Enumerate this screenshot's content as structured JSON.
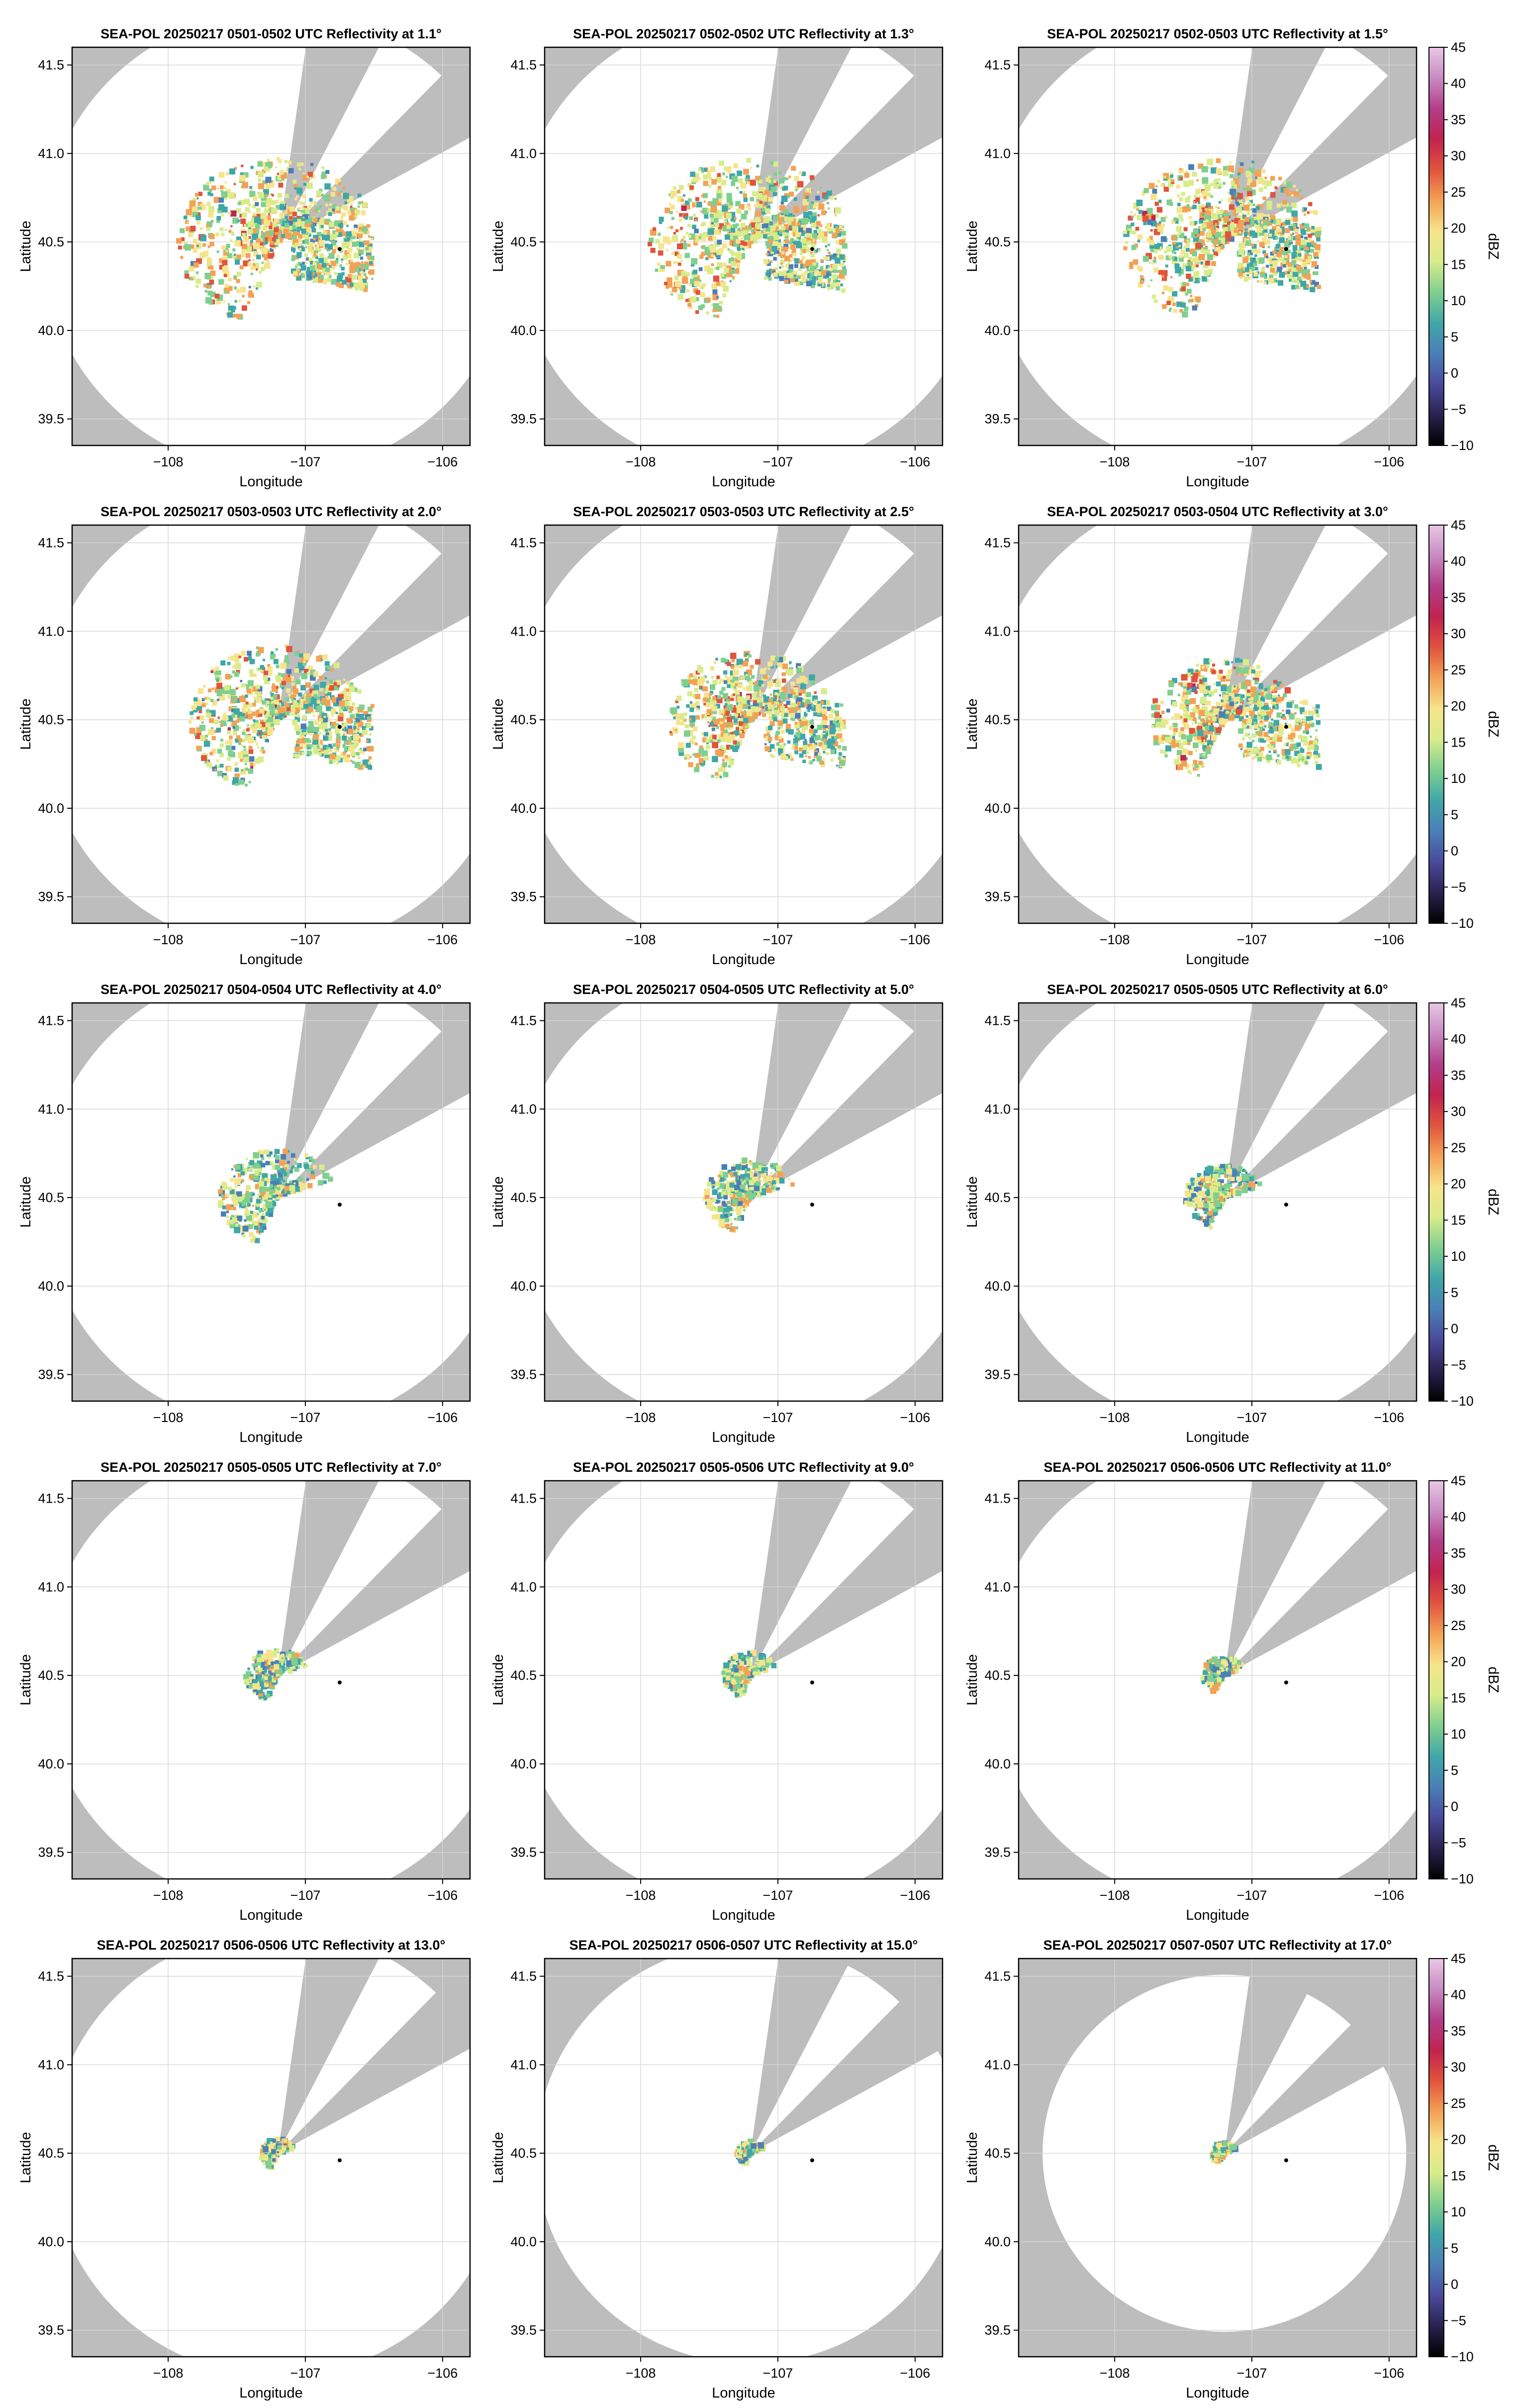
{
  "figure": {
    "background": "#ffffff",
    "sector_fill": "#bdbdbd",
    "colorbar_label": "dBZ",
    "colorbar_range": [
      -10,
      45
    ],
    "colorbar_ticks": [
      "−10",
      "−5",
      "0",
      "5",
      "10",
      "15",
      "20",
      "25",
      "30",
      "35",
      "40",
      "45"
    ],
    "colormap_stops": [
      "#000000",
      "#2a2250",
      "#4a4a9c",
      "#4a7fb8",
      "#3fa7a8",
      "#7fcf8f",
      "#d8ec8a",
      "#f6e48a",
      "#f4a155",
      "#e0543d",
      "#c1234f",
      "#b33d8a",
      "#c98ac3",
      "#e8c8e4"
    ]
  },
  "chart_data": [
    {
      "type": "heatmap",
      "title": "SEA-POL 20250217 0501-0502 UTC Reflectivity at 1.1°",
      "xlabel": "Longitude",
      "ylabel": "Latitude",
      "xlim": [
        -108.7,
        -105.8
      ],
      "ylim": [
        39.35,
        41.6
      ],
      "xticks": [
        "−108",
        "−107",
        "−106"
      ],
      "yticks": [
        "39.5",
        "40.0",
        "40.5",
        "41.0",
        "41.5"
      ],
      "radar_location": [
        -107.2,
        40.5
      ],
      "marker": [
        -106.75,
        40.46
      ],
      "max_range_km": 145,
      "echo_extent_km": 62
    },
    {
      "type": "heatmap",
      "title": "SEA-POL 20250217 0502-0502 UTC Reflectivity at 1.3°",
      "xlabel": "Longitude",
      "ylabel": "Latitude",
      "xlim": [
        -108.7,
        -105.8
      ],
      "ylim": [
        39.35,
        41.6
      ],
      "xticks": [
        "−108",
        "−107",
        "−106"
      ],
      "yticks": [
        "39.5",
        "40.0",
        "40.5",
        "41.0",
        "41.5"
      ],
      "radar_location": [
        -107.2,
        40.5
      ],
      "marker": [
        -106.75,
        40.46
      ],
      "max_range_km": 145,
      "echo_extent_km": 62
    },
    {
      "type": "heatmap",
      "title": "SEA-POL 20250217 0502-0503 UTC Reflectivity at 1.5°",
      "xlabel": "Longitude",
      "ylabel": "Latitude",
      "xlim": [
        -108.7,
        -105.8
      ],
      "ylim": [
        39.35,
        41.6
      ],
      "xticks": [
        "−108",
        "−107",
        "−106"
      ],
      "yticks": [
        "39.5",
        "40.0",
        "40.5",
        "41.0",
        "41.5"
      ],
      "radar_location": [
        -107.2,
        40.5
      ],
      "marker": [
        -106.75,
        40.46
      ],
      "max_range_km": 145,
      "echo_extent_km": 62
    },
    {
      "type": "heatmap",
      "title": "SEA-POL 20250217 0503-0503 UTC Reflectivity at 2.0°",
      "xlabel": "Longitude",
      "ylabel": "Latitude",
      "xlim": [
        -108.7,
        -105.8
      ],
      "ylim": [
        39.35,
        41.6
      ],
      "xticks": [
        "−108",
        "−107",
        "−106"
      ],
      "yticks": [
        "39.5",
        "40.0",
        "40.5",
        "41.0",
        "41.5"
      ],
      "radar_location": [
        -107.2,
        40.5
      ],
      "marker": [
        -106.75,
        40.46
      ],
      "max_range_km": 145,
      "echo_extent_km": 55
    },
    {
      "type": "heatmap",
      "title": "SEA-POL 20250217 0503-0503 UTC Reflectivity at 2.5°",
      "xlabel": "Longitude",
      "ylabel": "Latitude",
      "xlim": [
        -108.7,
        -105.8
      ],
      "ylim": [
        39.35,
        41.6
      ],
      "xticks": [
        "−108",
        "−107",
        "−106"
      ],
      "yticks": [
        "39.5",
        "40.0",
        "40.5",
        "41.0",
        "41.5"
      ],
      "radar_location": [
        -107.2,
        40.5
      ],
      "marker": [
        -106.75,
        40.46
      ],
      "max_range_km": 145,
      "echo_extent_km": 50
    },
    {
      "type": "heatmap",
      "title": "SEA-POL 20250217 0503-0504 UTC Reflectivity at 3.0°",
      "xlabel": "Longitude",
      "ylabel": "Latitude",
      "xlim": [
        -108.7,
        -105.8
      ],
      "ylim": [
        39.35,
        41.6
      ],
      "xticks": [
        "−108",
        "−107",
        "−106"
      ],
      "yticks": [
        "39.5",
        "40.0",
        "40.5",
        "41.0",
        "41.5"
      ],
      "radar_location": [
        -107.2,
        40.5
      ],
      "marker": [
        -106.75,
        40.46
      ],
      "max_range_km": 145,
      "echo_extent_km": 45
    },
    {
      "type": "heatmap",
      "title": "SEA-POL 20250217 0504-0504 UTC Reflectivity at 4.0°",
      "xlabel": "Longitude",
      "ylabel": "Latitude",
      "xlim": [
        -108.7,
        -105.8
      ],
      "ylim": [
        39.35,
        41.6
      ],
      "xticks": [
        "−108",
        "−107",
        "−106"
      ],
      "yticks": [
        "39.5",
        "40.0",
        "40.5",
        "41.0",
        "41.5"
      ],
      "radar_location": [
        -107.2,
        40.5
      ],
      "marker": [
        -106.75,
        40.46
      ],
      "max_range_km": 145,
      "echo_extent_km": 36
    },
    {
      "type": "heatmap",
      "title": "SEA-POL 20250217 0504-0505 UTC Reflectivity at 5.0°",
      "xlabel": "Longitude",
      "ylabel": "Latitude",
      "xlim": [
        -108.7,
        -105.8
      ],
      "ylim": [
        39.35,
        41.6
      ],
      "xticks": [
        "−108",
        "−107",
        "−106"
      ],
      "yticks": [
        "39.5",
        "40.0",
        "40.5",
        "41.0",
        "41.5"
      ],
      "radar_location": [
        -107.2,
        40.5
      ],
      "marker": [
        -106.75,
        40.46
      ],
      "max_range_km": 145,
      "echo_extent_km": 28
    },
    {
      "type": "heatmap",
      "title": "SEA-POL 20250217 0505-0505 UTC Reflectivity at 6.0°",
      "xlabel": "Longitude",
      "ylabel": "Latitude",
      "xlim": [
        -108.7,
        -105.8
      ],
      "ylim": [
        39.35,
        41.6
      ],
      "xticks": [
        "−108",
        "−107",
        "−106"
      ],
      "yticks": [
        "39.5",
        "40.0",
        "40.5",
        "41.0",
        "41.5"
      ],
      "radar_location": [
        -107.2,
        40.5
      ],
      "marker": [
        -106.75,
        40.46
      ],
      "max_range_km": 145,
      "echo_extent_km": 24
    },
    {
      "type": "heatmap",
      "title": "SEA-POL 20250217 0505-0505 UTC Reflectivity at 7.0°",
      "xlabel": "Longitude",
      "ylabel": "Latitude",
      "xlim": [
        -108.7,
        -105.8
      ],
      "ylim": [
        39.35,
        41.6
      ],
      "xticks": [
        "−108",
        "−107",
        "−106"
      ],
      "yticks": [
        "39.5",
        "40.0",
        "40.5",
        "41.0",
        "41.5"
      ],
      "radar_location": [
        -107.2,
        40.5
      ],
      "marker": [
        -106.75,
        40.46
      ],
      "max_range_km": 145,
      "echo_extent_km": 20
    },
    {
      "type": "heatmap",
      "title": "SEA-POL 20250217 0505-0506 UTC Reflectivity at 9.0°",
      "xlabel": "Longitude",
      "ylabel": "Latitude",
      "xlim": [
        -108.7,
        -105.8
      ],
      "ylim": [
        39.35,
        41.6
      ],
      "xticks": [
        "−108",
        "−107",
        "−106"
      ],
      "yticks": [
        "39.5",
        "40.0",
        "40.5",
        "41.0",
        "41.5"
      ],
      "radar_location": [
        -107.2,
        40.5
      ],
      "marker": [
        -106.75,
        40.46
      ],
      "max_range_km": 145,
      "echo_extent_km": 17
    },
    {
      "type": "heatmap",
      "title": "SEA-POL 20250217 0506-0506 UTC Reflectivity at 11.0°",
      "xlabel": "Longitude",
      "ylabel": "Latitude",
      "xlim": [
        -108.7,
        -105.8
      ],
      "ylim": [
        39.35,
        41.6
      ],
      "xticks": [
        "−108",
        "−107",
        "−106"
      ],
      "yticks": [
        "39.5",
        "40.0",
        "40.5",
        "41.0",
        "41.5"
      ],
      "radar_location": [
        -107.2,
        40.5
      ],
      "marker": [
        -106.75,
        40.46
      ],
      "max_range_km": 145,
      "echo_extent_km": 14
    },
    {
      "type": "heatmap",
      "title": "SEA-POL 20250217 0506-0506 UTC Reflectivity at 13.0°",
      "xlabel": "Longitude",
      "ylabel": "Latitude",
      "xlim": [
        -108.7,
        -105.8
      ],
      "ylim": [
        39.35,
        41.6
      ],
      "xticks": [
        "−108",
        "−107",
        "−106"
      ],
      "yticks": [
        "39.5",
        "40.0",
        "40.5",
        "41.0",
        "41.5"
      ],
      "radar_location": [
        -107.2,
        40.5
      ],
      "marker": [
        -106.75,
        40.46
      ],
      "max_range_km": 140,
      "echo_extent_km": 11
    },
    {
      "type": "heatmap",
      "title": "SEA-POL 20250217 0506-0507 UTC Reflectivity at 15.0°",
      "xlabel": "Longitude",
      "ylabel": "Latitude",
      "xlim": [
        -108.7,
        -105.8
      ],
      "ylim": [
        39.35,
        41.6
      ],
      "xticks": [
        "−108",
        "−107",
        "−106"
      ],
      "yticks": [
        "39.5",
        "40.0",
        "40.5",
        "41.0",
        "41.5"
      ],
      "radar_location": [
        -107.2,
        40.5
      ],
      "marker": [
        -106.75,
        40.46
      ],
      "max_range_km": 132,
      "echo_extent_km": 9
    },
    {
      "type": "heatmap",
      "title": "SEA-POL 20250217 0507-0507 UTC Reflectivity at 17.0°",
      "xlabel": "Longitude",
      "ylabel": "Latitude",
      "xlim": [
        -108.7,
        -105.8
      ],
      "ylim": [
        39.35,
        41.6
      ],
      "xticks": [
        "−108",
        "−107",
        "−106"
      ],
      "yticks": [
        "39.5",
        "40.0",
        "40.5",
        "41.0",
        "41.5"
      ],
      "radar_location": [
        -107.2,
        40.5
      ],
      "marker": [
        -106.75,
        40.46
      ],
      "max_range_km": 112,
      "echo_extent_km": 8
    }
  ]
}
